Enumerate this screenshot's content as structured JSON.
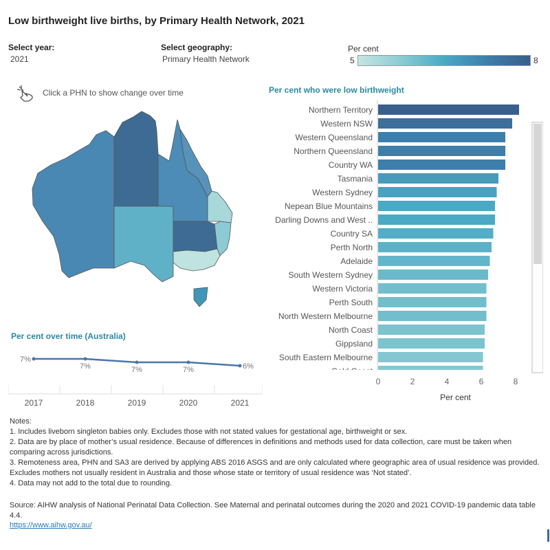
{
  "page": {
    "title": "Low birthweight live births, by Primary Health Network, 2021"
  },
  "filters": {
    "year_label": "Select year:",
    "year_value": "2021",
    "geo_label": "Select geography:",
    "geo_value": "Primary Health Network"
  },
  "legend": {
    "title": "Per cent",
    "min": "5",
    "max": "8",
    "color_low": "#c4e6e2",
    "color_high": "#3a5f8a"
  },
  "hint": {
    "icon": "hand-pointer-icon",
    "text": "Click a PHN to show change over time"
  },
  "chart_data": [
    {
      "type": "bar",
      "title": "Per cent who were low birthweight",
      "xlabel": "Per cent",
      "xlim": [
        0,
        8.5
      ],
      "xticks": [
        "0",
        "2",
        "4",
        "6",
        "8"
      ],
      "orientation": "horizontal",
      "categories": [
        "Northern Territory",
        "Western NSW",
        "Western Queensland",
        "Northern Queensland",
        "Country WA",
        "Tasmania",
        "Western Sydney",
        "Nepean Blue Mountains",
        "Darling Downs and West ..",
        "Country SA",
        "Perth North",
        "Adelaide",
        "South Western Sydney",
        "Western Victoria",
        "Perth South",
        "North Western Melbourne",
        "North Coast",
        "Gippsland",
        "South Eastern Melbourne",
        "Gold Coast"
      ],
      "values": [
        8.2,
        7.8,
        7.4,
        7.4,
        7.4,
        7.0,
        6.9,
        6.8,
        6.8,
        6.7,
        6.6,
        6.5,
        6.4,
        6.3,
        6.3,
        6.3,
        6.2,
        6.2,
        6.1,
        6.1
      ],
      "grid": false,
      "legend": "none"
    },
    {
      "type": "line",
      "title": "Per cent over time (Australia)",
      "x": [
        "2017",
        "2018",
        "2019",
        "2020",
        "2021"
      ],
      "values": [
        6.6,
        6.6,
        6.5,
        6.5,
        6.4
      ],
      "data_labels": [
        "7%",
        "7%",
        "7%",
        "7%",
        "6%"
      ],
      "color": "#4a76a8"
    }
  ],
  "notes": {
    "heading": "Notes:",
    "items": [
      "1. Includes liveborn singleton babies only. Excludes those with not stated values for gestational age, birthweight or sex.",
      "2. Data are by place of mother’s usual residence. Because of differences in definitions and methods used for data collection, care must be taken when comparing across jurisdictions.",
      "3. Remoteness area, PHN and SA3 are derived by applying ABS 2016 ASGS and are only calculated where geographic area of usual residence was provided. Excludes mothers not usually resident in Australia and those whose state or territory of usual residence was ‘Not stated’.",
      "4. Data may not add to the total due to rounding."
    ]
  },
  "source": {
    "text": "Source: AIHW analysis of National Perinatal Data Collection. See Maternal and perinatal outcomes during the 2020 and 2021 COVID-19 pandemic data table 4.4.",
    "link": "https://www.aihw.gov.au/"
  },
  "map": {
    "icon": "australia-map"
  }
}
